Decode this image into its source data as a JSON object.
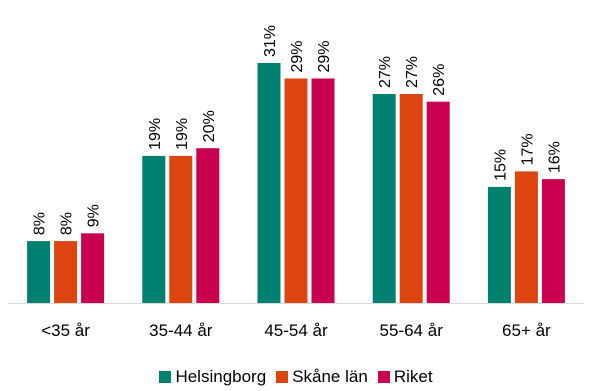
{
  "chart_data": {
    "type": "bar",
    "categories": [
      "<35 år",
      "35-44 år",
      "45-54 år",
      "55-64 år",
      "65+ år"
    ],
    "series": [
      {
        "name": "Helsingborg",
        "color": "#00806E",
        "values": [
          8,
          19,
          31,
          27,
          15
        ],
        "labels": [
          "8%",
          "19%",
          "31%",
          "27%",
          "15%"
        ]
      },
      {
        "name": "Skåne län",
        "color": "#DC4510",
        "values": [
          8,
          19,
          29,
          27,
          17
        ],
        "labels": [
          "8%",
          "19%",
          "29%",
          "27%",
          "17%"
        ]
      },
      {
        "name": "Riket",
        "color": "#C8004F",
        "values": [
          9,
          20,
          29,
          26,
          16
        ],
        "labels": [
          "9%",
          "20%",
          "29%",
          "26%",
          "16%"
        ]
      }
    ],
    "title": "",
    "xlabel": "",
    "ylabel": "",
    "ylim": [
      0,
      31
    ],
    "grid": false,
    "legend_position": "bottom"
  }
}
